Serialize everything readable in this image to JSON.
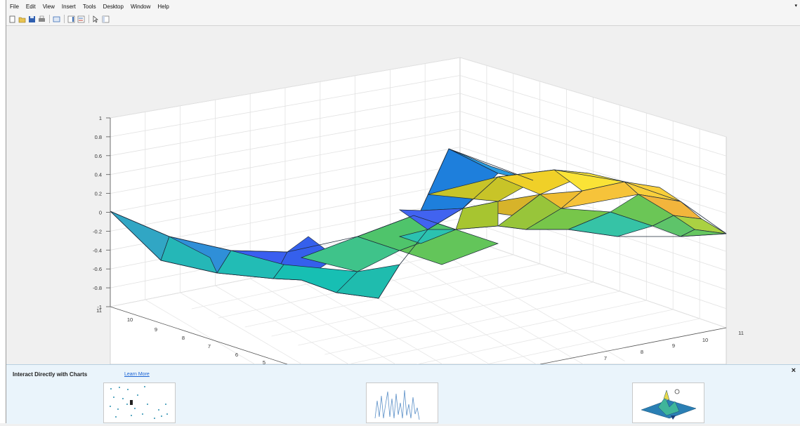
{
  "menu": {
    "items": [
      "File",
      "Edit",
      "View",
      "Insert",
      "Tools",
      "Desktop",
      "Window",
      "Help"
    ]
  },
  "toolbar": {
    "buttons": [
      "new-figure-icon",
      "open-file-icon",
      "save-icon",
      "print-icon",
      "link-plot-icon",
      "insert-colorbar-icon",
      "insert-legend-icon",
      "edit-plot-icon",
      "property-inspector-icon"
    ]
  },
  "chart_data": {
    "type": "surface",
    "z_ticks": [
      "-1",
      "-0.8",
      "-0.6",
      "-0.4",
      "-0.2",
      "0",
      "0.2",
      "0.4",
      "0.6",
      "0.8",
      "1"
    ],
    "y_ticks": [
      "11",
      "10",
      "9",
      "8",
      "7",
      "6",
      "5"
    ],
    "x_ticks": [
      "11",
      "10",
      "9",
      "8",
      "7"
    ],
    "zlim": [
      -1,
      1
    ],
    "grid": true,
    "colormap": "parula"
  },
  "panel": {
    "title": "Interact Directly with Charts",
    "learn_more": "Learn More",
    "thumbnails": [
      "scatter-data-tips-thumbnail",
      "line-zoom-thumbnail",
      "surface-rotate-thumbnail"
    ]
  }
}
